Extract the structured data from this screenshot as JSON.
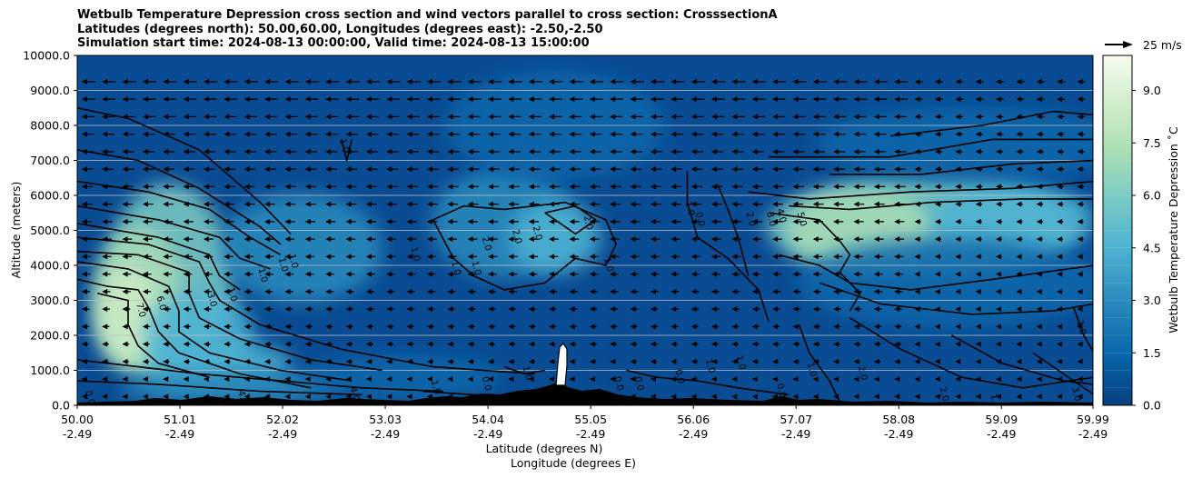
{
  "chart_data": {
    "type": "contourf",
    "title_lines": [
      "Wetbulb Temperature Depression cross section and wind vectors parallel to cross section: CrosssectionA",
      "Latitudes (degrees north): 50.00,60.00, Longitudes (degrees east): -2.50,-2.50",
      "Simulation start time: 2024-08-13 00:00:00, Valid time: 2024-08-13 15:00:00"
    ],
    "xlabel_lines": [
      "Latitude (degrees N)",
      "Longitude (degrees E)"
    ],
    "ylabel": "Altitude (meters)",
    "colorbar_label": "Wetbulb Temperature Depression ˚C",
    "colorbar_ticks": [
      "0.0",
      "1.5",
      "3.0",
      "4.5",
      "6.0",
      "7.5",
      "9.0"
    ],
    "colorbar_range": [
      0,
      10
    ],
    "colormap": [
      "#084081",
      "#0868ac",
      "#2b8cbe",
      "#4eb3d3",
      "#7bccc4",
      "#a8ddb5",
      "#ccebc5",
      "#e0f3db",
      "#f7fcf0"
    ],
    "vector_key_label": "25 m/s",
    "x_range": [
      50.0,
      59.99
    ],
    "y_range": [
      0,
      10000
    ],
    "x_ticks": [
      {
        "lat": "50.00",
        "lon": "-2.49"
      },
      {
        "lat": "51.01",
        "lon": "-2.49"
      },
      {
        "lat": "52.02",
        "lon": "-2.49"
      },
      {
        "lat": "53.03",
        "lon": "-2.49"
      },
      {
        "lat": "54.04",
        "lon": "-2.49"
      },
      {
        "lat": "55.05",
        "lon": "-2.49"
      },
      {
        "lat": "56.06",
        "lon": "-2.49"
      },
      {
        "lat": "57.07",
        "lon": "-2.49"
      },
      {
        "lat": "58.08",
        "lon": "-2.49"
      },
      {
        "lat": "59.09",
        "lon": "-2.49"
      },
      {
        "lat": "59.99",
        "lon": "-2.49"
      }
    ],
    "y_ticks": [
      "0.0",
      "1000.0",
      "2000.0",
      "3000.0",
      "4000.0",
      "5000.0",
      "6000.0",
      "7000.0",
      "8000.0",
      "9000.0",
      "10000.0"
    ],
    "grid": "horizontal",
    "contour_labels": [
      {
        "text": "7.0",
        "lat": 50.6,
        "alt": 2700
      },
      {
        "text": "6.0",
        "lat": 50.8,
        "alt": 2900
      },
      {
        "text": "3.0",
        "lat": 51.3,
        "alt": 3000
      },
      {
        "text": "1.0",
        "lat": 51.5,
        "alt": 3150
      },
      {
        "text": "1.0",
        "lat": 51.8,
        "alt": 3700
      },
      {
        "text": "1.0",
        "lat": 52.0,
        "alt": 4000
      },
      {
        "text": "1.0",
        "lat": 52.1,
        "alt": 4100
      },
      {
        "text": "1.0",
        "lat": 52.6,
        "alt": 7400
      },
      {
        "text": "1.0",
        "lat": 53.9,
        "alt": 3900
      },
      {
        "text": "1.0",
        "lat": 53.3,
        "alt": 4300
      },
      {
        "text": "1.0",
        "lat": 53.7,
        "alt": 3900
      },
      {
        "text": "2.0",
        "lat": 54.0,
        "alt": 4600
      },
      {
        "text": "2.0",
        "lat": 54.3,
        "alt": 4800
      },
      {
        "text": "2.0",
        "lat": 54.5,
        "alt": 4900
      },
      {
        "text": "2.0",
        "lat": 55.0,
        "alt": 5200
      },
      {
        "text": "1.0",
        "lat": 55.2,
        "alt": 4000
      },
      {
        "text": "1.0",
        "lat": 56.0,
        "alt": 5600
      },
      {
        "text": "0.0",
        "lat": 56.1,
        "alt": 5300
      },
      {
        "text": "2.0",
        "lat": 56.6,
        "alt": 5300
      },
      {
        "text": "3.0",
        "lat": 56.8,
        "alt": 5300
      },
      {
        "text": "4.0",
        "lat": 56.9,
        "alt": 5400
      },
      {
        "text": "5.0",
        "lat": 57.1,
        "alt": 5300
      },
      {
        "text": "1.0",
        "lat": 54.4,
        "alt": 900
      },
      {
        "text": "0.0",
        "lat": 55.3,
        "alt": 600
      },
      {
        "text": "0.0",
        "lat": 55.5,
        "alt": 600
      },
      {
        "text": "0.0",
        "lat": 55.9,
        "alt": 800
      },
      {
        "text": "1.0",
        "lat": 56.2,
        "alt": 1100
      },
      {
        "text": "1.0",
        "lat": 56.5,
        "alt": 1200
      },
      {
        "text": "1.0",
        "lat": 57.2,
        "alt": 1000
      },
      {
        "text": "2.0",
        "lat": 57.7,
        "alt": 900
      },
      {
        "text": "2.0",
        "lat": 58.5,
        "alt": 300
      },
      {
        "text": "1.0",
        "lat": 59.0,
        "alt": 100
      },
      {
        "text": "3.0",
        "lat": 59.8,
        "alt": 300
      },
      {
        "text": "1.0",
        "lat": 59.85,
        "alt": 2200
      },
      {
        "text": "1.0",
        "lat": 53.5,
        "alt": 500
      },
      {
        "text": "0.0",
        "lat": 54.0,
        "alt": 600
      },
      {
        "text": "0.0",
        "lat": 50.1,
        "alt": 200
      },
      {
        "text": "0.0",
        "lat": 56.9,
        "alt": 400
      },
      {
        "text": "4.0",
        "lat": 51.6,
        "alt": 200
      },
      {
        "text": "4.0",
        "lat": 52.7,
        "alt": 300
      }
    ]
  }
}
